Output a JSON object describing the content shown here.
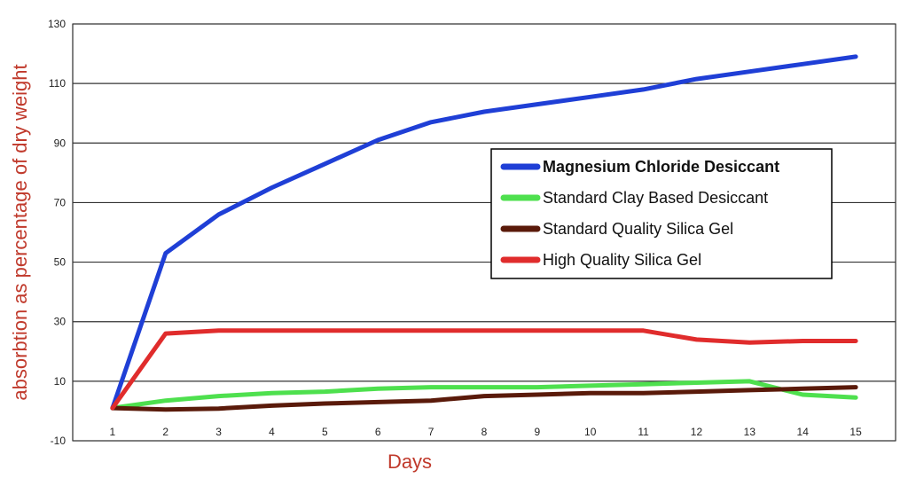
{
  "chart_data": {
    "type": "line",
    "title": "",
    "xlabel": "Days",
    "ylabel": "absorbtion as percentage of  dry weight",
    "x": [
      1,
      2,
      3,
      4,
      5,
      6,
      7,
      8,
      9,
      10,
      11,
      12,
      13,
      14,
      15
    ],
    "x_ticks": [
      "1",
      "2",
      "3",
      "4",
      "5",
      "6",
      "7",
      "8",
      "9",
      "10",
      "11",
      "12",
      "13",
      "14",
      "15"
    ],
    "y_ticks": [
      "-10",
      "10",
      "30",
      "50",
      "70",
      "90",
      "110",
      "130"
    ],
    "y_tick_values": [
      -10,
      10,
      30,
      50,
      70,
      90,
      110,
      130
    ],
    "xlim": [
      0.25,
      15.75
    ],
    "ylim": [
      -10,
      130
    ],
    "grid": "horizontal",
    "legend_position": "center-right",
    "series": [
      {
        "name": "Magnesium Chloride Desiccant",
        "color": "#1f3fd6",
        "values": [
          1,
          53,
          66,
          75,
          83,
          91,
          97,
          100.5,
          103,
          105.5,
          108,
          111.5,
          114,
          116.5,
          119
        ]
      },
      {
        "name": "Standard Clay Based Desiccant",
        "color": "#4ee04e",
        "values": [
          1,
          3.5,
          5,
          6,
          6.5,
          7.5,
          8,
          8,
          8,
          8.5,
          9,
          9.5,
          10,
          5.5,
          4.5
        ]
      },
      {
        "name": "Standard Quality Silica Gel",
        "color": "#5a1a0a",
        "values": [
          1,
          0.5,
          0.8,
          1.8,
          2.5,
          3,
          3.5,
          5,
          5.5,
          6,
          6,
          6.5,
          7,
          7.5,
          8
        ]
      },
      {
        "name": "High Quality Silica Gel",
        "color": "#e02c2c",
        "values": [
          1,
          26,
          27,
          27,
          27,
          27,
          27,
          27,
          27,
          27,
          27,
          24,
          23,
          23.5,
          23.5
        ]
      }
    ]
  }
}
